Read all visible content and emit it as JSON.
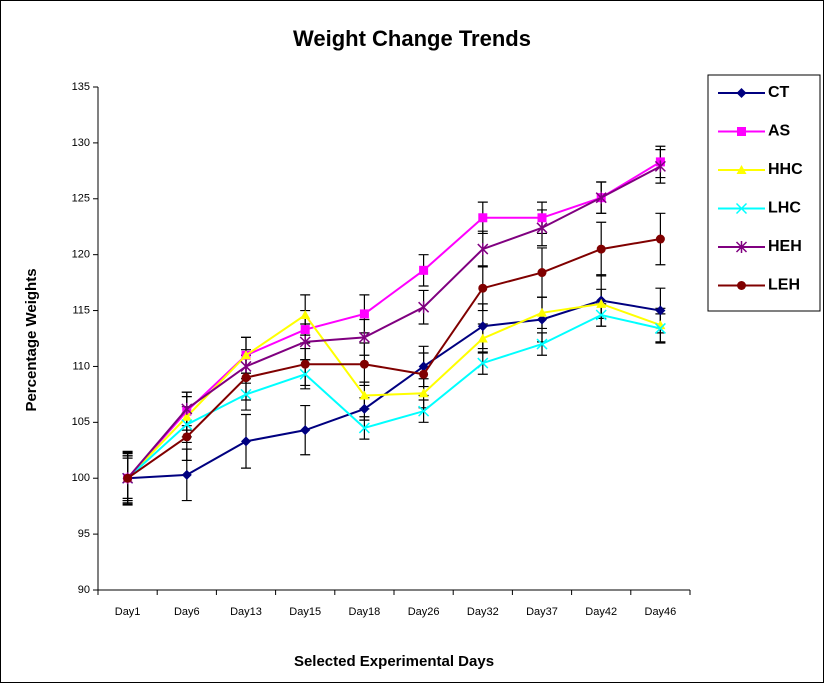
{
  "chart_data": {
    "type": "line",
    "title": "Weight Change Trends",
    "xlabel": "Selected Experimental Days",
    "ylabel": "Percentage Weights",
    "categories": [
      "Day1",
      "Day6",
      "Day13",
      "Day15",
      "Day18",
      "Day26",
      "Day32",
      "Day37",
      "Day42",
      "Day46"
    ],
    "ylim": [
      90,
      135
    ],
    "yticks": [
      90,
      95,
      100,
      105,
      110,
      115,
      120,
      125,
      130,
      135
    ],
    "legend": "right",
    "series": [
      {
        "name": "CT",
        "color": "#000080",
        "marker": "diamond",
        "values": [
          100,
          100.3,
          103.3,
          104.3,
          106.2,
          110,
          113.6,
          114.2,
          115.9,
          115.0
        ],
        "errors": [
          2.3,
          2.3,
          2.4,
          2.2,
          1.0,
          1.8,
          2.0,
          2.0,
          2.3,
          2.0
        ]
      },
      {
        "name": "AS",
        "color": "#ff00ff",
        "marker": "square",
        "values": [
          100,
          106,
          111,
          113.3,
          114.7,
          118.6,
          123.3,
          123.3,
          125.1,
          128.3
        ],
        "errors": [
          2.2,
          1.7,
          1.6,
          1.7,
          1.7,
          1.4,
          1.4,
          1.4,
          1.4,
          1.4
        ]
      },
      {
        "name": "HHC",
        "color": "#ffff00",
        "marker": "triangle",
        "values": [
          100,
          105.5,
          111,
          114.6,
          107.4,
          107.6,
          112.5,
          114.8,
          115.6,
          113.7
        ],
        "errors": [
          1.8,
          1.8,
          1.6,
          1.8,
          1.2,
          1.3,
          1.3,
          1.4,
          1.3,
          1.5
        ]
      },
      {
        "name": "LHC",
        "color": "#00ffff",
        "marker": "x",
        "values": [
          100,
          104.8,
          107.5,
          109.3,
          104.5,
          106,
          110.3,
          112,
          114.6,
          113.4
        ],
        "errors": [
          2.0,
          1.6,
          1.4,
          1.3,
          1.0,
          1.0,
          1.0,
          1.0,
          1.0,
          1.3
        ]
      },
      {
        "name": "HEH",
        "color": "#800080",
        "marker": "asterisk",
        "values": [
          100,
          106.2,
          110,
          112.2,
          112.6,
          115.3,
          120.5,
          122.4,
          125.1,
          127.9
        ],
        "errors": [
          2.0,
          1.5,
          1.5,
          1.6,
          1.6,
          1.5,
          1.6,
          1.6,
          1.4,
          1.5
        ]
      },
      {
        "name": "LEH",
        "color": "#800000",
        "marker": "circle",
        "values": [
          100,
          103.7,
          109,
          110.2,
          110.2,
          109.3,
          117,
          118.4,
          120.5,
          121.4
        ],
        "errors": [
          2.4,
          2.1,
          2.0,
          1.9,
          1.9,
          1.9,
          2.0,
          2.2,
          2.4,
          2.3
        ]
      }
    ]
  }
}
